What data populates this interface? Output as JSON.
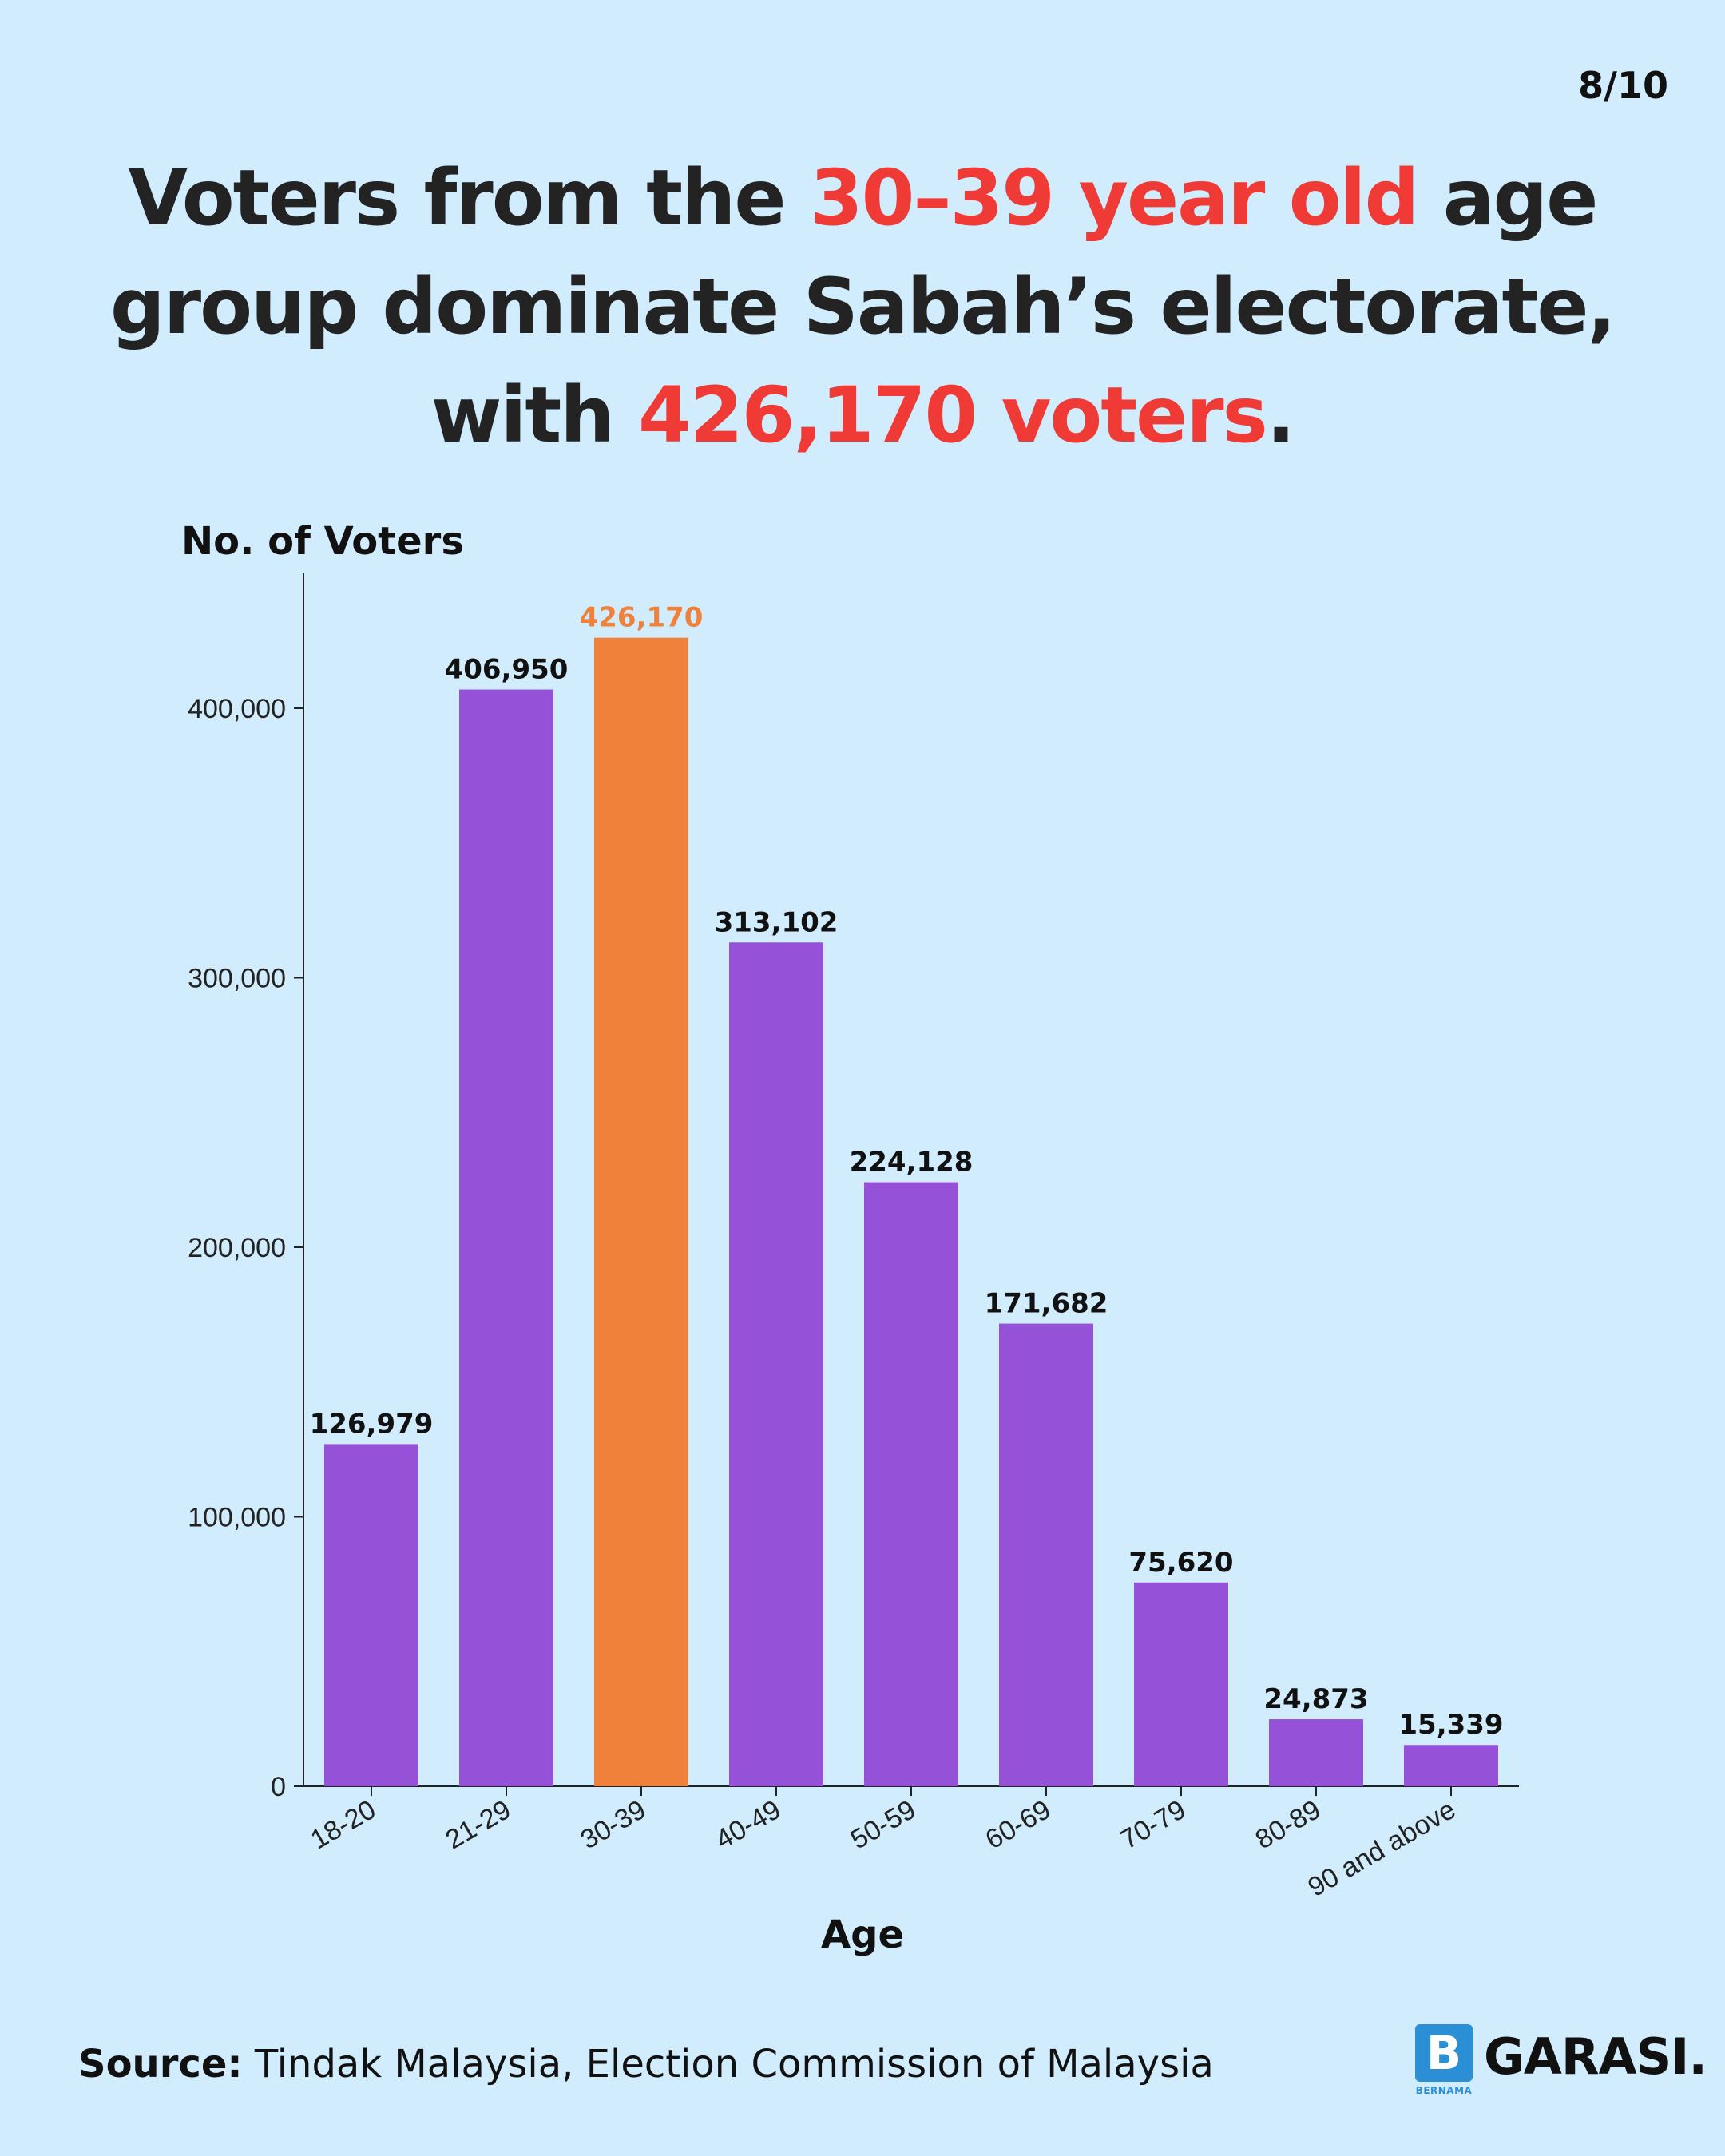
{
  "page_indicator": "8/10",
  "headline": {
    "part1": "Voters from the ",
    "highlight1": "30–39 year old",
    "part2": " age group dominate Sabah’s electorate, with ",
    "highlight2": "426,170 voters",
    "part3": "."
  },
  "colors": {
    "background": "#d1ecfc",
    "bar": "#9552d9",
    "highlight_bar": "#f0813b",
    "highlight_text": "#ef3a36",
    "logo": "#2a8fd4"
  },
  "chart_data": {
    "type": "bar",
    "title": "Voters from the 30–39 year old age group dominate Sabah’s electorate, with 426,170 voters.",
    "xlabel": "Age",
    "ylabel": "No. of Voters",
    "categories": [
      "18-20",
      "21-29",
      "30-39",
      "40-49",
      "50-59",
      "60-69",
      "70-79",
      "80-89",
      "90 and above"
    ],
    "values": [
      126979,
      406950,
      426170,
      313102,
      224128,
      171682,
      75620,
      24873,
      15339
    ],
    "value_labels": [
      "126,979",
      "406,950",
      "426,170",
      "313,102",
      "224,128",
      "171,682",
      "75,620",
      "24,873",
      "15,339"
    ],
    "highlight_index": 2,
    "ylim": [
      0,
      450000
    ],
    "yticks": [
      0,
      100000,
      200000,
      300000,
      400000
    ],
    "ytick_labels": [
      "0",
      "100,000",
      "200,000",
      "300,000",
      "400,000"
    ],
    "grid": false
  },
  "footer": {
    "source_label": "Source:",
    "source_text": " Tindak Malaysia, Election Commission of Malaysia"
  },
  "logo": {
    "badge": "B",
    "sub": "BERNAMA",
    "name": "GARASI."
  }
}
